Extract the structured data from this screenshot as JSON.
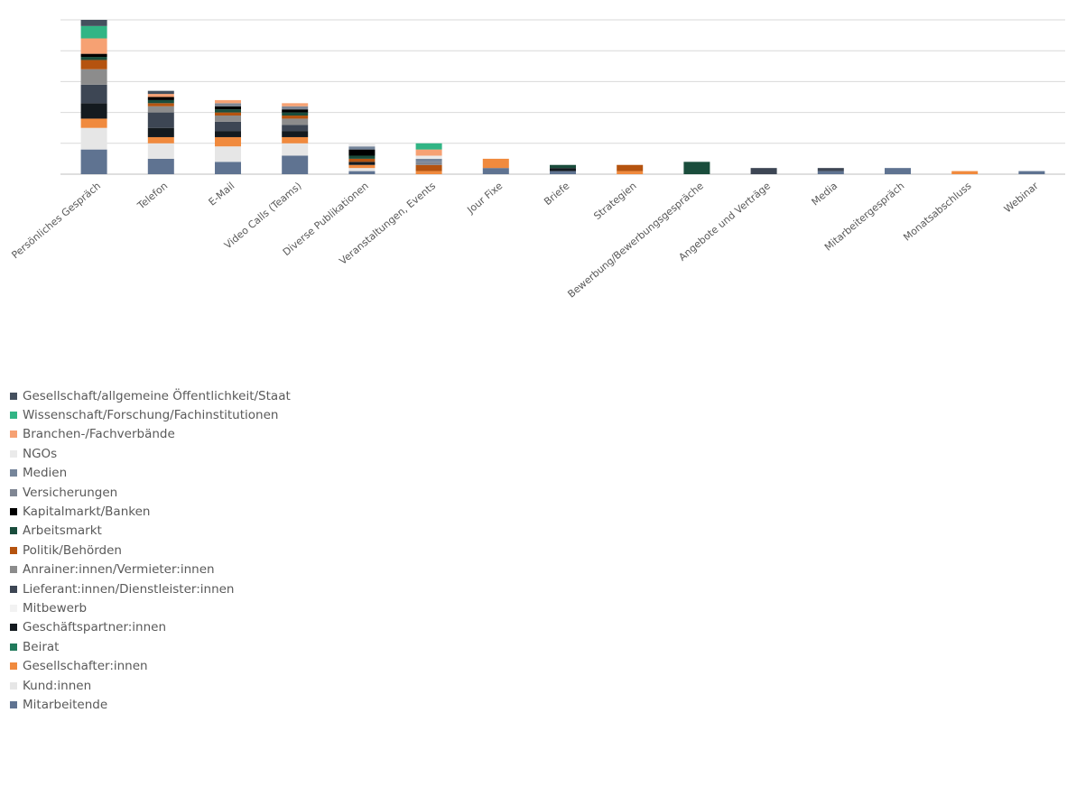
{
  "chart_data": {
    "type": "bar",
    "stacked": true,
    "grid": true,
    "legend_position": "bottom",
    "ylim": [
      0,
      52
    ],
    "gridlines": [
      0,
      10,
      20,
      30,
      40,
      50
    ],
    "categories": [
      "Persönliches Gespräch",
      "Telefon",
      "E-Mail",
      "Video Calls (Teams)",
      "Diverse Publikationen",
      "Veranstaltungen, Events",
      "Jour Fixe",
      "Briefe",
      "Strategien",
      "Bewerbung/Bewerbungsgespräche",
      "Angebote und Verträge",
      "Media",
      "Mitarbeitergespräch",
      "Monatsabschluss",
      "Webinar"
    ],
    "series": [
      {
        "name": "Mitarbeitende",
        "color": "#5f7391",
        "values": [
          8,
          5,
          4,
          6,
          1,
          0,
          2,
          1,
          0,
          0,
          0,
          1,
          2,
          0,
          1
        ]
      },
      {
        "name": "Kund:innen",
        "color": "#e6e6e6",
        "values": [
          7,
          5,
          5,
          4,
          1,
          0,
          0,
          0,
          0,
          0,
          0,
          0,
          0,
          0,
          0
        ]
      },
      {
        "name": "Gesellschafter:innen",
        "color": "#f08a3e",
        "values": [
          3,
          2,
          3,
          2,
          1,
          1,
          3,
          0,
          1,
          0,
          0,
          0,
          0,
          1,
          0
        ]
      },
      {
        "name": "Beirat",
        "color": "#217a5b",
        "values": [
          0,
          0,
          0,
          0,
          0,
          0,
          0,
          0,
          0,
          0,
          0,
          0,
          0,
          0,
          0
        ]
      },
      {
        "name": "Geschäftspartner:innen",
        "color": "#141a1f",
        "values": [
          5,
          3,
          2,
          2,
          1,
          0,
          0,
          1,
          0,
          0,
          0,
          0,
          0,
          0,
          0
        ]
      },
      {
        "name": "Mitbewerb",
        "color": "#f2f2f2",
        "values": [
          0,
          0,
          0,
          0,
          0,
          0,
          0,
          0,
          0,
          0,
          0,
          0,
          0,
          0,
          0
        ]
      },
      {
        "name": "Lieferant:innen/Dienstleister:innen",
        "color": "#3d4654",
        "values": [
          6,
          5,
          3,
          2,
          0,
          0,
          0,
          0,
          0,
          0,
          2,
          1,
          0,
          0,
          0
        ]
      },
      {
        "name": "Anrainer:innen/Vermieter:innen",
        "color": "#8c8c8c",
        "values": [
          5,
          2,
          2,
          2,
          0,
          0,
          0,
          0,
          0,
          0,
          0,
          0,
          0,
          0,
          0
        ]
      },
      {
        "name": "Politik/Behörden",
        "color": "#b5530f",
        "values": [
          3,
          1,
          1,
          1,
          1,
          2,
          0,
          0,
          2,
          0,
          0,
          0,
          0,
          0,
          0
        ]
      },
      {
        "name": "Arbeitsmarkt",
        "color": "#1a4d3c",
        "values": [
          1,
          1,
          1,
          1,
          1,
          0,
          0,
          1,
          0,
          4,
          0,
          0,
          0,
          0,
          0
        ]
      },
      {
        "name": "Kapitalmarkt/Banken",
        "color": "#000000",
        "values": [
          1,
          1,
          1,
          1,
          2,
          0,
          0,
          0,
          0,
          0,
          0,
          0,
          0,
          0,
          0
        ]
      },
      {
        "name": "Versicherungen",
        "color": "#7f8693",
        "values": [
          0,
          0,
          1,
          1,
          0,
          1,
          0,
          0,
          0,
          0,
          0,
          0,
          0,
          0,
          0
        ]
      },
      {
        "name": "Medien",
        "color": "#75859a",
        "values": [
          0,
          0,
          0,
          0,
          1,
          1,
          0,
          0,
          0,
          0,
          0,
          0,
          0,
          0,
          0
        ]
      },
      {
        "name": "NGOs",
        "color": "#eaeaea",
        "values": [
          0,
          0,
          0,
          0,
          1,
          1,
          0,
          0,
          0,
          0,
          0,
          0,
          0,
          0,
          0
        ]
      },
      {
        "name": "Branchen-/Fachverbände",
        "color": "#f6a173",
        "values": [
          5,
          1,
          1,
          1,
          0,
          2,
          0,
          0,
          0,
          0,
          0,
          0,
          0,
          0,
          0
        ]
      },
      {
        "name": "Wissenschaft/Forschung/Fachinstitutionen",
        "color": "#31b585",
        "values": [
          4,
          0,
          0,
          0,
          0,
          2,
          0,
          0,
          0,
          0,
          0,
          0,
          0,
          0,
          0
        ]
      },
      {
        "name": "Gesellschaft/allgemeine Öffentlichkeit/Staat",
        "color": "#44505e",
        "values": [
          2,
          1,
          0,
          0,
          0,
          0,
          0,
          0,
          0,
          0,
          0,
          0,
          0,
          0,
          0
        ]
      }
    ],
    "legend_order": [
      "Gesellschaft/allgemeine Öffentlichkeit/Staat",
      "Wissenschaft/Forschung/Fachinstitutionen",
      "Branchen-/Fachverbände",
      "NGOs",
      "Medien",
      "Versicherungen",
      "Kapitalmarkt/Banken",
      "Arbeitsmarkt",
      "Politik/Behörden",
      "Anrainer:innen/Vermieter:innen",
      "Lieferant:innen/Dienstleister:innen",
      "Mitbewerb",
      "Geschäftspartner:innen",
      "Beirat",
      "Gesellschafter:innen",
      "Kund:innen",
      "Mitarbeitende"
    ],
    "colors": {
      "gridline": "#d9d9d9",
      "axis": "#bfbfbf",
      "label": "#595959"
    }
  }
}
